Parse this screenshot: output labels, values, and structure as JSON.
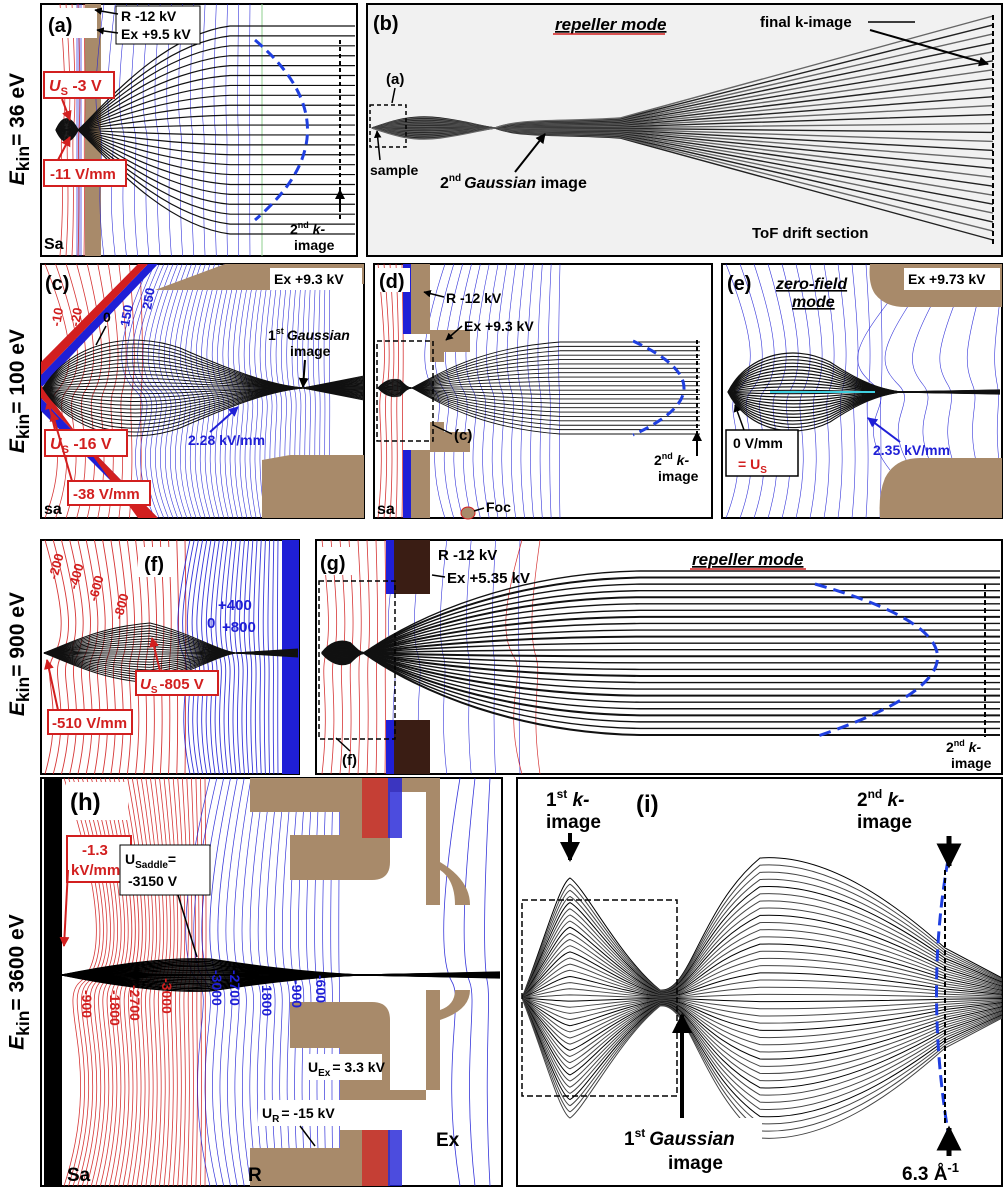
{
  "rows": [
    {
      "e": "E",
      "sub": "kin",
      "val": "= 36 eV"
    },
    {
      "e": "E",
      "sub": "kin",
      "val": "= 100 eV"
    },
    {
      "e": "E",
      "sub": "kin",
      "val": "= 900 eV"
    },
    {
      "e": "E",
      "sub": "kin",
      "val": "= 3600 eV"
    }
  ],
  "panels": {
    "a": {
      "letter": "(a)",
      "r": "R -12 kV",
      "ex": "Ex +9.5 kV",
      "us_u": "U",
      "us_s": "S",
      "us_v": " -3 V",
      "field": "-11 V/mm",
      "sa": "Sa",
      "img_n": "2",
      "img_sup": "nd",
      "img_k": " k-",
      "img_word": "image"
    },
    "b": {
      "letter": "(b)",
      "mode": "repeller mode",
      "final": "final k-image",
      "a_ref": "(a)",
      "sample": "sample",
      "g_n": "2",
      "g_sup": "nd",
      "g_word": "Gaussian",
      "g_tail": " image",
      "tof": "ToF drift section"
    },
    "c": {
      "letter": "(c)",
      "ex": "Ex +9.3 kV",
      "lbl_m10": "-10",
      "lbl_m20": "-20",
      "lbl_0": "0",
      "lbl_150": "150",
      "lbl_250": "250",
      "g_n": "1",
      "g_sup": "st",
      "g_word": "Gaussian",
      "g_img": "image",
      "us_u": "U",
      "us_s": "S",
      "us_v": " -16 V",
      "field_blue": "2.28 kV/mm",
      "field_red": "-38 V/mm",
      "sa": "sa"
    },
    "d": {
      "letter": "(d)",
      "r": "R -12 kV",
      "ex": "Ex +9.3 kV",
      "c_ref": "(c)",
      "img_n": "2",
      "img_sup": "nd",
      "img_k": " k-",
      "img_word": "image",
      "foc": "Foc",
      "sa": "sa"
    },
    "e": {
      "letter": "(e)",
      "mode1": "zero-field",
      "mode2": "mode",
      "ex": "Ex +9.73 kV",
      "zero": "0 V/mm",
      "eq_u": "= U",
      "eq_s": "S",
      "field": "2.35 kV/mm"
    },
    "f": {
      "letter": "(f)",
      "l200": "-200",
      "l400": "-400",
      "l600": "-600",
      "l800": "-800",
      "p400": "+400",
      "p0": "0",
      "p800": "+800",
      "field": "-510 V/mm",
      "us_u": "U",
      "us_s": "S",
      "us_v": "-805 V"
    },
    "g": {
      "letter": "(g)",
      "r": "R -12 kV",
      "ex": "Ex +5.35 kV",
      "mode": "repeller mode",
      "f_ref": "(f)",
      "img_n": "2",
      "img_sup": "nd",
      "img_k": " k-",
      "img_word": "image"
    },
    "h": {
      "letter": "(h)",
      "field1": "-1.3",
      "field2": "kV/mm",
      "saddle_u": "U",
      "saddle_s": "Saddle",
      "saddle_eq": "=",
      "saddle_v": "-3150 V",
      "r900": "-900",
      "r1800": "-1800",
      "r2700": "-2700",
      "r3000": "-3000",
      "b3000": "-3000",
      "b2700": "-2700",
      "b1800": "1800",
      "b900": "-900",
      "b600": "-600",
      "uex_u": "U",
      "uex_s": "Ex",
      "uex_v": "= 3.3 kV",
      "ur_u": "U",
      "ur_s": "R",
      "ur_v": "= -15 kV",
      "sa": "Sa",
      "r": "R",
      "ex": "Ex"
    },
    "i": {
      "letter": "(i)",
      "k1_n": "1",
      "k1_sup": "st",
      "k1_k": " k-",
      "k1_img": "image",
      "k2_n": "2",
      "k2_sup": "nd",
      "k2_k": " k-",
      "k2_img": "image",
      "g_n": "1",
      "g_sup": "st",
      "g_word": "Gaussian",
      "g_img": "image",
      "scale": "6.3 Å",
      "scale_sup": "-1"
    }
  },
  "colors": {
    "electrode": "#a88a6a",
    "electrode_dark": "#3a1d14",
    "blue": "#1f1fd6",
    "red": "#d21f1f",
    "dashed_blue": "#1f3fe0"
  }
}
